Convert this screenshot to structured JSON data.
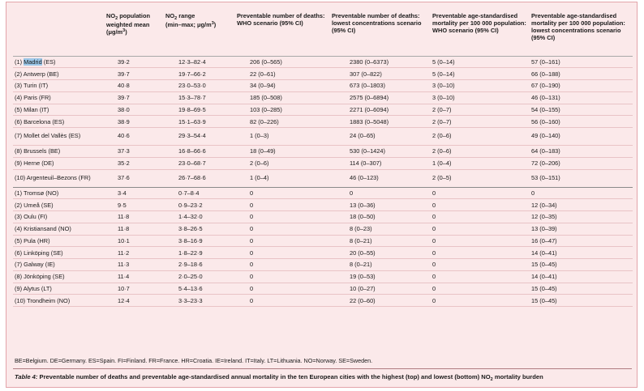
{
  "headers": {
    "city": "",
    "mean_prefix": "NO",
    "mean_sub": "2",
    "mean_text": " population weighted mean",
    "mean_unit_prefix": "(μg/m",
    "mean_unit_sup": "3",
    "mean_unit_suffix": ")",
    "range_prefix": "NO",
    "range_sub": "2",
    "range_text": " range",
    "range_unit_prefix": "(min–max; μg/m",
    "range_unit_sup": "3",
    "range_unit_suffix": ")",
    "who_deaths": "Preventable number of deaths: WHO scenario (95% CI)",
    "low_deaths": "Preventable number of deaths: lowest concentrations scenario (95% CI)",
    "who_mortality": "Preventable age-standardised mortality per 100 000 population: WHO scenario (95% CI)",
    "low_mortality": "Preventable age-standardised mortality per 100 000 population: lowest concentrations scenario (95% CI)"
  },
  "top_rows": [
    {
      "rank": "(1) ",
      "city": "Madrid",
      "country": " (ES)",
      "mean": "39·2",
      "range": "12·3–82·4",
      "who_deaths": "206 (0–565)",
      "low_deaths": "2380 (0–6373)",
      "who_mort": "5 (0–14)",
      "low_mort": "57 (0–161)"
    },
    {
      "rank": "(2) ",
      "city": "Antwerp",
      "country": " (BE)",
      "mean": "39·7",
      "range": "19·7–66·2",
      "who_deaths": "22 (0–61)",
      "low_deaths": "307 (0–822)",
      "who_mort": "5 (0–14)",
      "low_mort": "66 (0–188)"
    },
    {
      "rank": "(3) ",
      "city": "Turin",
      "country": " (IT)",
      "mean": "40·8",
      "range": "23·0–53·0",
      "who_deaths": "34 (0–94)",
      "low_deaths": "673 (0–1803)",
      "who_mort": "3 (0–10)",
      "low_mort": "67 (0–190)"
    },
    {
      "rank": "(4) ",
      "city": "Paris",
      "country": " (FR)",
      "mean": "39·7",
      "range": "15·3–78·7",
      "who_deaths": "185 (0–508)",
      "low_deaths": "2575 (0–6894)",
      "who_mort": "3 (0–10)",
      "low_mort": "46 (0–131)"
    },
    {
      "rank": "(5) ",
      "city": "Milan",
      "country": " (IT)",
      "mean": "38·0",
      "range": "19·8–69·5",
      "who_deaths": "103 (0–285)",
      "low_deaths": "2271 (0–6094)",
      "who_mort": "2 (0–7)",
      "low_mort": "54 (0–155)"
    },
    {
      "rank": "(6) ",
      "city": "Barcelona",
      "country": " (ES)",
      "mean": "38·9",
      "range": "15·1–63·9",
      "who_deaths": "82 (0–226)",
      "low_deaths": "1883 (0–5048)",
      "who_mort": "2 (0–7)",
      "low_mort": "56 (0–160)"
    },
    {
      "rank": "(7) ",
      "city": "Mollet del Vallès",
      "country": " (ES)",
      "mean": "40·6",
      "range": "29·3–54·4",
      "who_deaths": "1 (0–3)",
      "low_deaths": "24 (0–65)",
      "who_mort": "2 (0–6)",
      "low_mort": "49 (0–140)"
    },
    {
      "rank": "(8) ",
      "city": "Brussels",
      "country": " (BE)",
      "mean": "37·3",
      "range": "16·8–66·6",
      "who_deaths": "18 (0–49)",
      "low_deaths": "530 (0–1424)",
      "who_mort": "2 (0–6)",
      "low_mort": "64 (0–183)"
    },
    {
      "rank": "(9) ",
      "city": "Herne",
      "country": " (DE)",
      "mean": "35·2",
      "range": "23·0–68·7",
      "who_deaths": "2 (0–6)",
      "low_deaths": "114 (0–307)",
      "who_mort": "1 (0–4)",
      "low_mort": "72 (0–206)"
    },
    {
      "rank": "(10) ",
      "city": "Argenteuil–Bezons",
      "country": " (FR)",
      "mean": "37·6",
      "range": "26·7–68·6",
      "who_deaths": "1 (0–4)",
      "low_deaths": "46 (0–123)",
      "who_mort": "2 (0–5)",
      "low_mort": "53 (0–151)"
    }
  ],
  "bottom_rows": [
    {
      "rank": "(1) ",
      "city": "Tromsø",
      "country": " (NO)",
      "mean": "3·4",
      "range": "0·7–8·4",
      "who_deaths": "0",
      "low_deaths": "0",
      "who_mort": "0",
      "low_mort": "0"
    },
    {
      "rank": "(2) ",
      "city": "Umeå",
      "country": " (SE)",
      "mean": "9·5",
      "range": "0·9–23·2",
      "who_deaths": "0",
      "low_deaths": "13 (0–36)",
      "who_mort": "0",
      "low_mort": "12 (0–34)"
    },
    {
      "rank": "(3) ",
      "city": "Oulu",
      "country": " (FI)",
      "mean": "11·8",
      "range": "1·4–32·0",
      "who_deaths": "0",
      "low_deaths": "18 (0–50)",
      "who_mort": "0",
      "low_mort": "12 (0–35)"
    },
    {
      "rank": "(4) ",
      "city": "Kristiansand",
      "country": " (NO)",
      "mean": "11·8",
      "range": "3·8–26·5",
      "who_deaths": "0",
      "low_deaths": "8 (0–23)",
      "who_mort": "0",
      "low_mort": "13 (0–39)"
    },
    {
      "rank": "(5) ",
      "city": "Pula",
      "country": " (HR)",
      "mean": "10·1",
      "range": "3·8–16·9",
      "who_deaths": "0",
      "low_deaths": "8 (0–21)",
      "who_mort": "0",
      "low_mort": "16 (0–47)"
    },
    {
      "rank": "(6) ",
      "city": "Linköping",
      "country": " (SE)",
      "mean": "11·2",
      "range": "1·8–22·9",
      "who_deaths": "0",
      "low_deaths": "20 (0–55)",
      "who_mort": "0",
      "low_mort": "14 (0–41)"
    },
    {
      "rank": "(7) ",
      "city": "Galway",
      "country": " (IE)",
      "mean": "11·3",
      "range": "2·9–18·6",
      "who_deaths": "0",
      "low_deaths": "8 (0–21)",
      "who_mort": "0",
      "low_mort": "15 (0–45)"
    },
    {
      "rank": "(8) ",
      "city": "Jönköping",
      "country": " (SE)",
      "mean": "11·4",
      "range": "2·0–25·0",
      "who_deaths": "0",
      "low_deaths": "19 (0–53)",
      "who_mort": "0",
      "low_mort": "14 (0–41)"
    },
    {
      "rank": "(9) ",
      "city": "Alytus",
      "country": " (LT)",
      "mean": "10·7",
      "range": "5·4–13·6",
      "who_deaths": "0",
      "low_deaths": "10 (0–27)",
      "who_mort": "0",
      "low_mort": "15 (0–45)"
    },
    {
      "rank": "(10) ",
      "city": "Trondheim",
      "country": " (NO)",
      "mean": "12·4",
      "range": "3·3–23·3",
      "who_deaths": "0",
      "low_deaths": "22 (0–60)",
      "who_mort": "0",
      "low_mort": "15 (0–45)"
    }
  ],
  "abbreviations": "BE=Belgium. DE=Germany. ES=Spain. FI=Finland. FR=France. HR=Croatia. IE=Ireland. IT=Italy. LT=Lithuania. NO=Norway. SE=Sweden.",
  "caption": {
    "label": "Table 4:",
    "text_before": " Preventable number of deaths and preventable age-standardised annual mortality in the ten European cities with the highest (top) and lowest (bottom) NO",
    "sub": "2",
    "text_after": " mortality burden"
  },
  "colors": {
    "panel": "#fbe9ea",
    "border": "#e3a4aa",
    "highlight": "#9cc7e8"
  }
}
